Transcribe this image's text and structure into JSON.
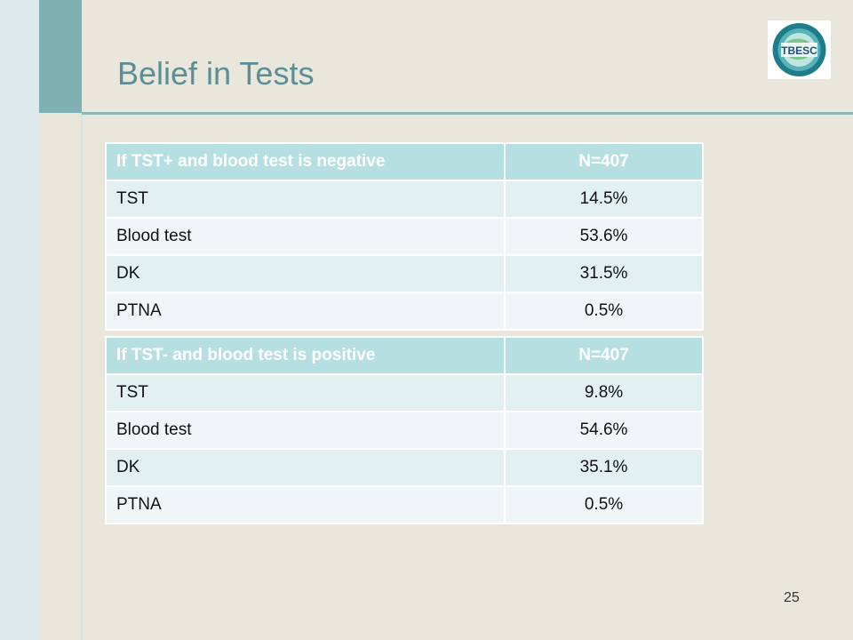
{
  "slide": {
    "title": "Belief in Tests",
    "page_number": "25",
    "logo_text": "TBESC"
  },
  "table1": {
    "header": [
      "If TST+ and blood test is negative",
      "N=407"
    ],
    "rows": [
      [
        "TST",
        "14.5%"
      ],
      [
        "Blood test",
        "53.6%"
      ],
      [
        "DK",
        "31.5%"
      ],
      [
        "PTNA",
        "0.5%"
      ]
    ]
  },
  "table2": {
    "header": [
      "If TST- and blood test is positive",
      "N=407"
    ],
    "rows": [
      [
        "TST",
        "9.8%"
      ],
      [
        "Blood test",
        "54.6%"
      ],
      [
        "DK",
        "35.1%"
      ],
      [
        "PTNA",
        "0.5%"
      ]
    ]
  },
  "colors": {
    "header_bg": "#b5dfe0",
    "row_odd": "#e3f0f1",
    "row_even": "#f0f6f7",
    "title": "#5b8f95",
    "accent_bar": "#7fb0b3"
  }
}
